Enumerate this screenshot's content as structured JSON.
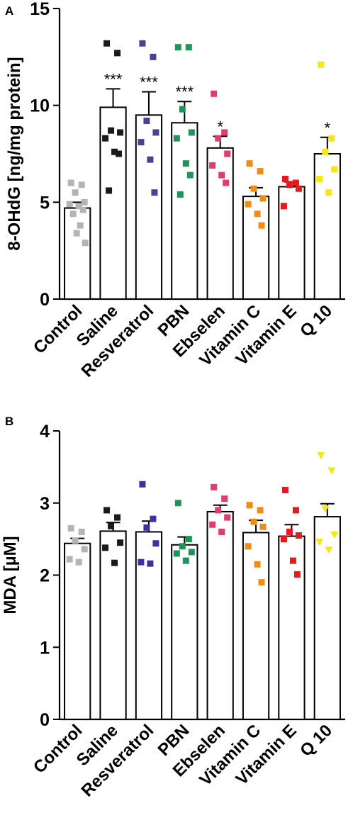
{
  "chart_data": [
    {
      "panel": "A",
      "type": "bar",
      "ylabel": "8-OHdG [ng/mg protein]",
      "xlabel": "",
      "ylim": [
        0,
        15
      ],
      "yticks": [
        0,
        5,
        10,
        15
      ],
      "categories": [
        "Control",
        "Saline",
        "Resveratrol",
        "PBN",
        "Ebselen",
        "Vitamin C",
        "Vitamin E",
        "Q 10"
      ],
      "means": [
        4.7,
        9.9,
        9.5,
        9.1,
        7.8,
        5.3,
        5.8,
        7.5
      ],
      "sem": [
        0.3,
        0.95,
        1.2,
        1.1,
        0.6,
        0.45,
        0.25,
        0.85
      ],
      "significance": [
        "",
        "***",
        "***",
        "***",
        "*",
        "",
        "",
        "*"
      ],
      "colors": [
        "#b4b4b4",
        "#1a1a1a",
        "#4b4190",
        "#20925a",
        "#e03c6e",
        "#f08c14",
        "#e41a1c",
        "#f5e614"
      ],
      "markers": [
        "square",
        "square",
        "square",
        "square",
        "square",
        "square",
        "square",
        "square"
      ],
      "points": [
        [
          6.0,
          5.9,
          5.5,
          5.0,
          4.9,
          4.8,
          4.6,
          4.4,
          3.8,
          3.4,
          2.9
        ],
        [
          13.2,
          12.7,
          8.7,
          8.6,
          8.3,
          7.6,
          7.5,
          5.6
        ],
        [
          13.2,
          12.5,
          9.2,
          8.6,
          8.1,
          7.2,
          5.5
        ],
        [
          13.0,
          13.0,
          9.8,
          8.6,
          8.3,
          7.0,
          6.4,
          5.4
        ],
        [
          10.6,
          8.6,
          8.3,
          7.5,
          6.9,
          6.4,
          6.0
        ],
        [
          7.0,
          6.6,
          5.7,
          5.2,
          4.9,
          4.4,
          3.8
        ],
        [
          6.2,
          6.0,
          5.9,
          5.7,
          4.8
        ],
        [
          12.1,
          8.3,
          7.6,
          6.7,
          6.2,
          5.5
        ]
      ]
    },
    {
      "panel": "B",
      "type": "bar",
      "ylabel": "MDA [µM]",
      "xlabel": "",
      "ylim": [
        0,
        4
      ],
      "yticks": [
        0,
        1,
        2,
        3,
        4
      ],
      "categories": [
        "Control",
        "Saline",
        "Resveratrol",
        "PBN",
        "Ebselen",
        "Vitamin C",
        "Vitamin E",
        "Q 10"
      ],
      "means": [
        2.44,
        2.61,
        2.6,
        2.42,
        2.88,
        2.59,
        2.54,
        2.81
      ],
      "sem": [
        0.07,
        0.12,
        0.15,
        0.11,
        0.09,
        0.17,
        0.16,
        0.18
      ],
      "significance": [
        "",
        "",
        "",
        "",
        "",
        "",
        "",
        ""
      ],
      "colors": [
        "#b4b4b4",
        "#1a1a1a",
        "#3a32a0",
        "#20925a",
        "#e03c6e",
        "#f08c14",
        "#e41a1c",
        "#f5e614"
      ],
      "markers": [
        "square",
        "square",
        "square",
        "square",
        "square",
        "square",
        "square",
        "triangle-down"
      ],
      "points": [
        [
          2.65,
          2.6,
          2.48,
          2.36,
          2.22,
          2.18
        ],
        [
          2.9,
          2.8,
          2.68,
          2.45,
          2.38,
          2.17
        ],
        [
          3.26,
          2.78,
          2.66,
          2.44,
          2.18,
          2.16
        ],
        [
          3.0,
          2.5,
          2.4,
          2.32,
          2.3,
          2.2
        ],
        [
          3.22,
          3.06,
          2.9,
          2.8,
          2.7,
          2.6
        ],
        [
          2.97,
          2.9,
          2.74,
          2.67,
          2.4,
          2.15,
          1.9
        ],
        [
          3.18,
          2.9,
          2.6,
          2.55,
          2.5,
          2.2,
          2.01
        ],
        [
          3.66,
          3.45,
          2.92,
          2.56,
          2.46,
          2.35
        ]
      ]
    }
  ]
}
